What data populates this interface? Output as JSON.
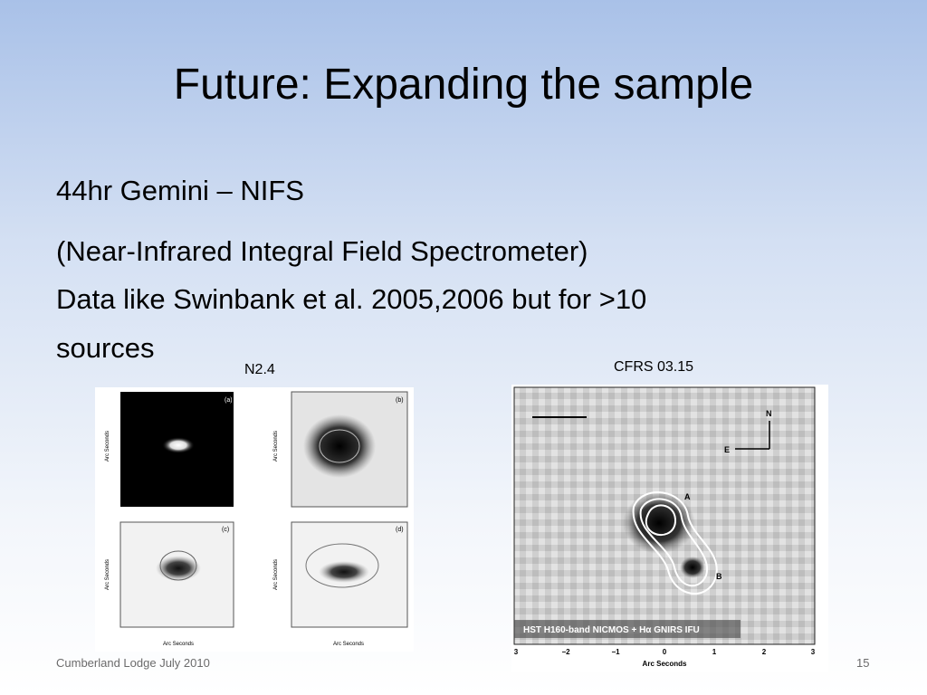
{
  "title": "Future: Expanding the sample",
  "body": [
    "44hr Gemini – NIFS",
    "(Near-Infrared Integral Field Spectrometer)",
    "Data like Swinbank et al. 2005,2006 but for >10",
    "sources"
  ],
  "figures": [
    {
      "caption": "N2.4",
      "panels": [
        "(a)",
        "(b)",
        "(c)",
        "(d)"
      ],
      "axis_label": "Arc Seconds"
    },
    {
      "caption": "CFRS 03.15",
      "labels": [
        "N",
        "E",
        "A",
        "B"
      ],
      "legend": "HST H160-band NICMOS + Hα GNIRS IFU",
      "x_ticks": [
        "3",
        "−2",
        "−1",
        "0",
        "1",
        "2",
        "3"
      ],
      "axis_label": "Arc Seconds"
    }
  ],
  "footer": {
    "text": "Cumberland Lodge July 2010",
    "page": "15"
  }
}
